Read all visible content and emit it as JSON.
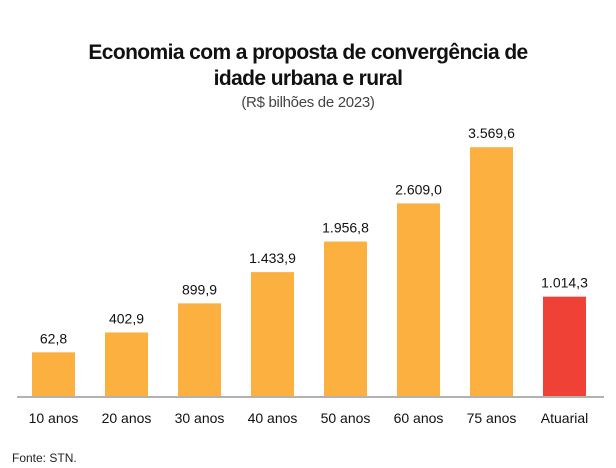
{
  "chart_data": {
    "type": "bar",
    "title": "Economia com a proposta de convergência de idade urbana e rural",
    "title_lines": [
      "Economia com a proposta de convergência de",
      "idade urbana e rural"
    ],
    "subtitle": "(R$ bilhões de 2023)",
    "categories": [
      "10 anos",
      "20 anos",
      "30 anos",
      "40 anos",
      "50 anos",
      "60 anos",
      "75 anos",
      "Atuarial"
    ],
    "values": [
      62.8,
      402.9,
      899.9,
      1433.9,
      1956.8,
      2609.0,
      3569.6,
      1014.3
    ],
    "value_labels": [
      "62,8",
      "402,9",
      "899,9",
      "1.433,9",
      "1.956,8",
      "2.609,0",
      "3.569,6",
      "1.014,3"
    ],
    "bar_colors": [
      "#FBB040",
      "#FBB040",
      "#FBB040",
      "#FBB040",
      "#FBB040",
      "#FBB040",
      "#FBB040",
      "#EF4136"
    ],
    "xlabel": "",
    "ylabel": "",
    "grid": false,
    "legend": "none"
  },
  "source": "Fonte: STN."
}
